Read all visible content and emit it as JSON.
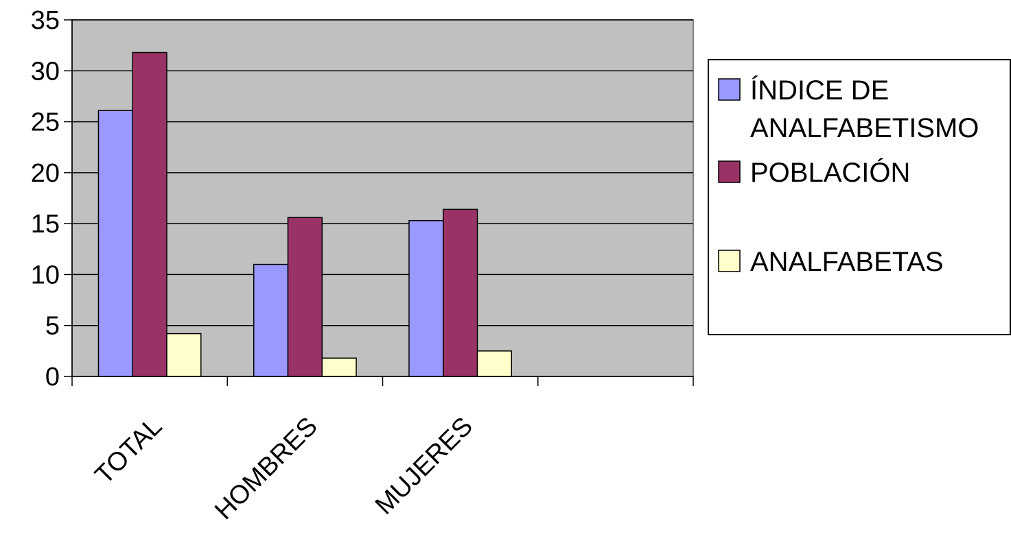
{
  "chart_data": {
    "type": "bar",
    "categories": [
      "TOTAL",
      "HOMBRES",
      "MUJERES",
      ""
    ],
    "series": [
      {
        "name": "ÍNDICE DE ANALFABETISMO",
        "values": [
          26.1,
          11.0,
          15.3,
          null
        ],
        "color": "#9999ff",
        "legend_lines": [
          "ÍNDICE DE",
          "ANALFABETISMO"
        ]
      },
      {
        "name": "POBLACIÓN",
        "values": [
          31.8,
          15.6,
          16.4,
          null
        ],
        "color": "#993366",
        "legend_lines": [
          "POBLACIÓN"
        ]
      },
      {
        "name": "ANALFABETAS",
        "values": [
          4.2,
          1.8,
          2.5,
          null
        ],
        "color": "#ffffcc",
        "legend_lines": [
          "ANALFABETAS"
        ]
      }
    ],
    "yticks": [
      "0",
      "5",
      "10",
      "15",
      "20",
      "25",
      "30",
      "35"
    ],
    "ylim": [
      0,
      35
    ],
    "grid": true,
    "plot_background": "#c0c0c0",
    "legend_position": "right",
    "title": "",
    "xlabel": "",
    "ylabel": ""
  }
}
